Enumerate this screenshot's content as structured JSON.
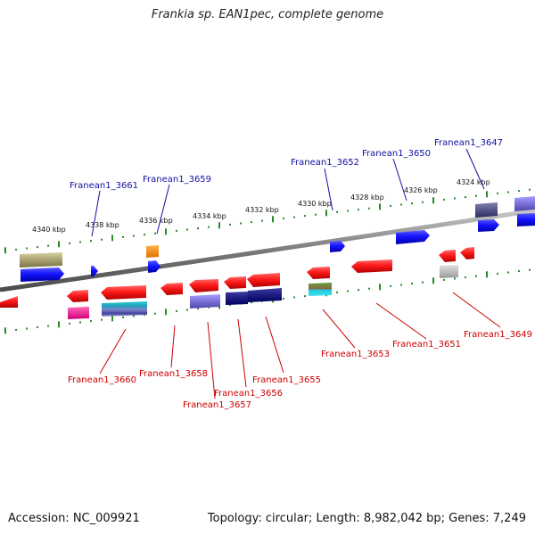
{
  "title": "Frankia sp. EAN1pec, complete genome",
  "accession": "Accession: NC_009921",
  "summary": "Topology: circular; Length: 8,982,042 bp; Genes: 7,249",
  "colors": {
    "label_upper": "#1010a0",
    "label_lower": "#cc0000",
    "backbone": "#888888",
    "tick": "#2a8a2a"
  },
  "scale_labels": [
    "4340 kbp",
    "4338 kbp",
    "4336 kbp",
    "4334 kbp",
    "4332 kbp",
    "4330 kbp",
    "4328 kbp",
    "4326 kbp",
    "4324 kbp"
  ],
  "genes_upper": [
    "Franean1_3661",
    "Franean1_3659",
    "Franean1_3652",
    "Franean1_3650",
    "Franean1_3647"
  ],
  "genes_lower": [
    "Franean1_3660",
    "Franean1_3658",
    "Franean1_3657",
    "Franean1_3656",
    "Franean1_3655",
    "Franean1_3653",
    "Franean1_3651",
    "Franean1_3649"
  ]
}
